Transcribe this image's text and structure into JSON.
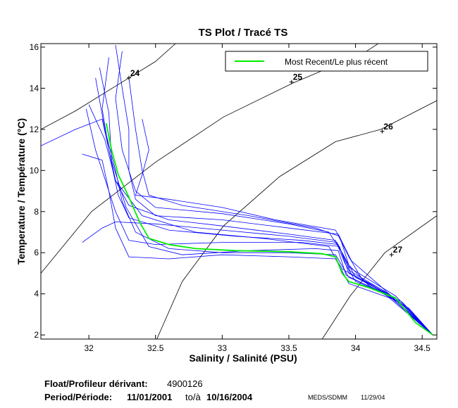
{
  "chart_data": {
    "type": "line",
    "title": "TS Plot / Tracé TS",
    "xlabel": "Salinity / Salinité (PSU)",
    "ylabel": "Temperature / Température (°C)",
    "xlim": [
      31.64,
      34.61
    ],
    "ylim": [
      1.8,
      16.17
    ],
    "xticks": [
      32,
      32.5,
      33,
      33.5,
      34,
      34.5
    ],
    "xtick_labels": [
      "32",
      "32.5",
      "33",
      "33.5",
      "34",
      "34.5"
    ],
    "yticks": [
      2,
      4,
      6,
      8,
      10,
      12,
      14,
      16
    ],
    "ytick_labels": [
      "2",
      "4",
      "6",
      "8",
      "10",
      "12",
      "14",
      "16"
    ],
    "grid": false,
    "legend": {
      "position": "top-right",
      "entries": [
        {
          "label": "Most Recent/Le plus récent",
          "color": "#00ee00"
        }
      ]
    },
    "colors": {
      "profiles": "#0000ff",
      "recent": "#00ee00",
      "isopycnal": "#000000"
    },
    "isopycnals": [
      {
        "label": "24",
        "label_at": [
          32.3,
          14.5
        ],
        "points": [
          [
            31.64,
            12.0
          ],
          [
            31.9,
            12.9
          ],
          [
            32.1,
            13.7
          ],
          [
            32.3,
            14.5
          ],
          [
            32.5,
            15.3
          ],
          [
            32.65,
            16.17
          ]
        ]
      },
      {
        "label": "25",
        "label_at": [
          33.52,
          14.3
        ],
        "points": [
          [
            31.64,
            5.0
          ],
          [
            32.02,
            8.0
          ],
          [
            32.5,
            10.4
          ],
          [
            33.01,
            12.6
          ],
          [
            33.53,
            14.25
          ],
          [
            34.06,
            15.7
          ],
          [
            34.17,
            16.17
          ]
        ]
      },
      {
        "label": "26",
        "label_at": [
          34.2,
          11.9
        ],
        "points": [
          [
            32.51,
            1.8
          ],
          [
            32.7,
            4.6
          ],
          [
            33.01,
            7.3
          ],
          [
            33.43,
            9.7
          ],
          [
            33.85,
            11.4
          ],
          [
            34.19,
            12.0
          ],
          [
            34.61,
            13.4
          ]
        ]
      },
      {
        "label": "27",
        "label_at": [
          34.27,
          5.9
        ],
        "points": [
          [
            33.75,
            1.8
          ],
          [
            33.96,
            3.9
          ],
          [
            34.22,
            6.0
          ],
          [
            34.61,
            7.8
          ]
        ]
      }
    ],
    "recent_profile": [
      [
        32.13,
        12.3
      ],
      [
        32.17,
        11
      ],
      [
        32.22,
        9.8
      ],
      [
        32.3,
        8.7
      ],
      [
        32.38,
        7.5
      ],
      [
        32.45,
        6.7
      ],
      [
        32.6,
        6.4
      ],
      [
        32.8,
        6.2
      ],
      [
        33.1,
        6.1
      ],
      [
        33.5,
        6.05
      ],
      [
        33.75,
        5.95
      ],
      [
        33.85,
        5.8
      ],
      [
        33.9,
        5.0
      ],
      [
        33.95,
        4.6
      ],
      [
        34.1,
        4.3
      ],
      [
        34.3,
        3.8
      ],
      [
        34.45,
        2.6
      ],
      [
        34.58,
        2.0
      ]
    ],
    "profiles": [
      [
        [
          32.15,
          15.5
        ],
        [
          32.1,
          13
        ],
        [
          32.15,
          11
        ],
        [
          32.2,
          9.5
        ],
        [
          32.3,
          8.3
        ],
        [
          32.6,
          7.6
        ],
        [
          33,
          7.3
        ],
        [
          33.5,
          6.9
        ],
        [
          33.85,
          6.6
        ],
        [
          33.92,
          5.5
        ],
        [
          34,
          4.6
        ],
        [
          34.3,
          3.8
        ],
        [
          34.58,
          2
        ]
      ],
      [
        [
          32.05,
          14.5
        ],
        [
          32.12,
          12
        ],
        [
          32.2,
          10
        ],
        [
          32.25,
          8.5
        ],
        [
          32.35,
          7
        ],
        [
          32.6,
          6.2
        ],
        [
          33,
          6
        ],
        [
          33.5,
          6
        ],
        [
          33.85,
          5.9
        ],
        [
          33.95,
          4.8
        ],
        [
          34.2,
          4.1
        ],
        [
          34.58,
          2
        ]
      ],
      [
        [
          32.25,
          15.8
        ],
        [
          32.2,
          13.5
        ],
        [
          32.25,
          11
        ],
        [
          32.35,
          9
        ],
        [
          32.5,
          8.2
        ],
        [
          33,
          7.9
        ],
        [
          33.5,
          7.4
        ],
        [
          33.8,
          7
        ],
        [
          33.9,
          6
        ],
        [
          34,
          4.8
        ],
        [
          34.35,
          3.6
        ],
        [
          34.58,
          2
        ]
      ],
      [
        [
          31.98,
          13
        ],
        [
          32.05,
          11
        ],
        [
          32.15,
          9
        ],
        [
          32.2,
          7.2
        ],
        [
          32.3,
          5.8
        ],
        [
          32.6,
          5.7
        ],
        [
          33,
          5.9
        ],
        [
          33.5,
          5.8
        ],
        [
          33.85,
          5.7
        ],
        [
          33.95,
          4.5
        ],
        [
          34.3,
          3.7
        ],
        [
          34.58,
          2
        ]
      ],
      [
        [
          32.3,
          14.5
        ],
        [
          32.35,
          12
        ],
        [
          32.4,
          10
        ],
        [
          32.45,
          8.8
        ],
        [
          32.7,
          8.3
        ],
        [
          33.2,
          7.8
        ],
        [
          33.7,
          7.2
        ],
        [
          33.88,
          6.8
        ],
        [
          33.95,
          5.4
        ],
        [
          34.1,
          4.4
        ],
        [
          34.4,
          3.3
        ],
        [
          34.58,
          2
        ]
      ],
      [
        [
          31.64,
          11.2
        ],
        [
          31.9,
          12
        ],
        [
          32.1,
          12.5
        ],
        [
          32.15,
          11
        ],
        [
          32.2,
          9.5
        ],
        [
          32.4,
          7.8
        ],
        [
          32.8,
          7
        ],
        [
          33.3,
          6.7
        ],
        [
          33.8,
          6.3
        ],
        [
          33.9,
          5.2
        ],
        [
          34.2,
          4.2
        ],
        [
          34.58,
          2
        ]
      ],
      [
        [
          32.08,
          15
        ],
        [
          32.15,
          12.8
        ],
        [
          32.17,
          10.5
        ],
        [
          32.28,
          8.2
        ],
        [
          32.45,
          6.3
        ],
        [
          32.7,
          5.9
        ],
        [
          33.2,
          6.1
        ],
        [
          33.7,
          6.2
        ],
        [
          33.87,
          6.1
        ],
        [
          33.93,
          4.9
        ],
        [
          34.25,
          3.9
        ],
        [
          34.58,
          2
        ]
      ],
      [
        [
          32.4,
          12.5
        ],
        [
          32.45,
          11
        ],
        [
          32.4,
          9.8
        ],
        [
          32.35,
          8.8
        ],
        [
          32.6,
          8.6
        ],
        [
          33,
          8.2
        ],
        [
          33.4,
          7.6
        ],
        [
          33.85,
          7.1
        ],
        [
          33.95,
          5.8
        ],
        [
          34.05,
          4.7
        ],
        [
          34.35,
          3.5
        ],
        [
          34.58,
          2
        ]
      ],
      [
        [
          31.95,
          10.8
        ],
        [
          32.1,
          10.5
        ],
        [
          32.15,
          9
        ],
        [
          32.2,
          8
        ],
        [
          32.3,
          6.6
        ],
        [
          32.5,
          6.4
        ],
        [
          33,
          6.5
        ],
        [
          33.6,
          6.5
        ],
        [
          33.88,
          6.3
        ],
        [
          33.95,
          5
        ],
        [
          34.3,
          3.8
        ],
        [
          34.58,
          2
        ]
      ],
      [
        [
          32.0,
          13.2
        ],
        [
          32.12,
          11.5
        ],
        [
          32.18,
          10
        ],
        [
          32.22,
          8.8
        ],
        [
          32.3,
          7.7
        ],
        [
          32.6,
          7.1
        ],
        [
          33.1,
          6.8
        ],
        [
          33.6,
          6.6
        ],
        [
          33.87,
          6.4
        ],
        [
          33.96,
          5.1
        ],
        [
          34.25,
          4
        ],
        [
          34.58,
          2
        ]
      ],
      [
        [
          31.95,
          6.5
        ],
        [
          32.1,
          7.2
        ],
        [
          32.2,
          7.5
        ],
        [
          32.5,
          7.4
        ],
        [
          33,
          7.1
        ],
        [
          33.5,
          6.8
        ],
        [
          33.86,
          6.5
        ],
        [
          33.95,
          5.3
        ],
        [
          34.3,
          3.9
        ],
        [
          34.58,
          2
        ]
      ],
      [
        [
          32.2,
          16.1
        ],
        [
          32.25,
          14
        ],
        [
          32.3,
          12
        ],
        [
          32.3,
          10
        ],
        [
          32.35,
          8.6
        ],
        [
          32.5,
          7.8
        ],
        [
          33,
          7.6
        ],
        [
          33.5,
          7.2
        ],
        [
          33.87,
          6.9
        ],
        [
          33.97,
          5.6
        ],
        [
          34.2,
          4.3
        ],
        [
          34.58,
          2
        ]
      ]
    ]
  },
  "footer": {
    "float_label": "Float/Profileur dérivant:",
    "float_id": "4900126",
    "period_label": "Period/Période:",
    "start_date": "11/01/2001",
    "to_label": "to/à",
    "end_date": "10/16/2004",
    "credit": "MEDS/SDMM",
    "credit_date": "11/29/04"
  }
}
